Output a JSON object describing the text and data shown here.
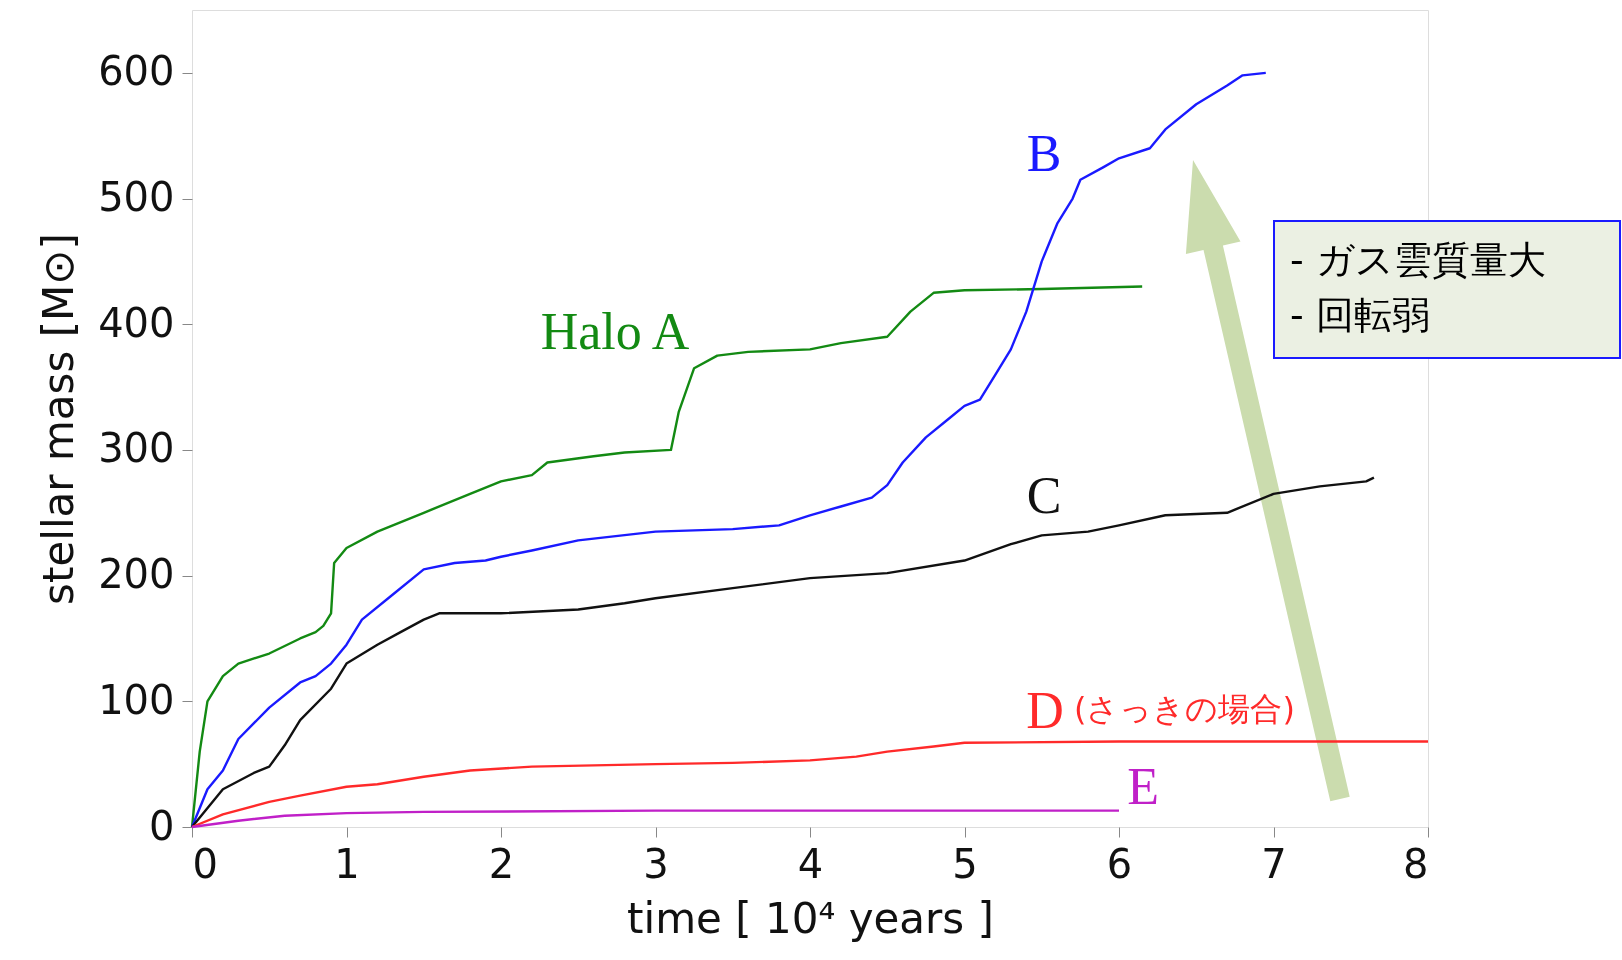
{
  "chart_data": {
    "type": "line",
    "xlabel": "time [ 10⁴ years ]",
    "ylabel": "stellar mass [M⊙]",
    "xlim": [
      0,
      8
    ],
    "ylim": [
      0,
      650
    ],
    "xticks": [
      0,
      1,
      2,
      3,
      4,
      5,
      6,
      7,
      8
    ],
    "yticks": [
      0,
      100,
      200,
      300,
      400,
      500,
      600
    ],
    "grid": false,
    "marker": "none",
    "line_style": "solid",
    "series": [
      {
        "name": "Halo A",
        "color": "#138a13",
        "x": [
          0,
          0.05,
          0.1,
          0.2,
          0.3,
          0.5,
          0.7,
          0.8,
          0.85,
          0.9,
          0.92,
          1.0,
          1.2,
          1.5,
          1.8,
          2.0,
          2.2,
          2.3,
          2.6,
          2.8,
          3.1,
          3.15,
          3.25,
          3.4,
          3.6,
          4.0,
          4.2,
          4.5,
          4.65,
          4.8,
          5.0,
          5.5,
          6.15
        ],
        "values": [
          0,
          60,
          100,
          120,
          130,
          138,
          150,
          155,
          160,
          170,
          210,
          222,
          235,
          250,
          265,
          275,
          280,
          290,
          295,
          298,
          300,
          330,
          365,
          375,
          378,
          380,
          385,
          390,
          410,
          425,
          427,
          428,
          430
        ]
      },
      {
        "name": "B",
        "color": "#1a1aff",
        "x": [
          0,
          0.1,
          0.2,
          0.3,
          0.5,
          0.7,
          0.8,
          0.9,
          1.0,
          1.1,
          1.3,
          1.5,
          1.7,
          1.9,
          2.0,
          2.2,
          2.5,
          3.0,
          3.5,
          3.8,
          4.0,
          4.2,
          4.4,
          4.5,
          4.6,
          4.75,
          4.9,
          5.0,
          5.1,
          5.2,
          5.3,
          5.4,
          5.5,
          5.6,
          5.7,
          5.75,
          5.9,
          6.0,
          6.2,
          6.3,
          6.5,
          6.7,
          6.8,
          6.95
        ],
        "values": [
          0,
          30,
          45,
          70,
          95,
          115,
          120,
          130,
          145,
          165,
          185,
          205,
          210,
          212,
          215,
          220,
          228,
          235,
          237,
          240,
          248,
          255,
          262,
          272,
          290,
          310,
          325,
          335,
          340,
          360,
          380,
          410,
          450,
          480,
          500,
          515,
          525,
          532,
          540,
          555,
          575,
          590,
          598,
          600
        ]
      },
      {
        "name": "C",
        "color": "#111111",
        "x": [
          0,
          0.2,
          0.4,
          0.5,
          0.6,
          0.7,
          0.9,
          1.0,
          1.2,
          1.35,
          1.5,
          1.6,
          2.0,
          2.5,
          2.8,
          3.0,
          3.5,
          4.0,
          4.5,
          5.0,
          5.3,
          5.5,
          5.8,
          6.0,
          6.3,
          6.7,
          7.0,
          7.3,
          7.6,
          7.65
        ],
        "values": [
          0,
          30,
          43,
          48,
          65,
          85,
          110,
          130,
          145,
          155,
          165,
          170,
          170,
          173,
          178,
          182,
          190,
          198,
          202,
          212,
          225,
          232,
          235,
          240,
          248,
          250,
          265,
          271,
          275,
          278
        ]
      },
      {
        "name": "D",
        "color": "#ff2a2a",
        "x": [
          0,
          0.2,
          0.5,
          0.7,
          1.0,
          1.2,
          1.5,
          1.8,
          2.2,
          3.0,
          3.5,
          4.0,
          4.3,
          4.5,
          4.8,
          5.0,
          6.0,
          8.0
        ],
        "values": [
          0,
          10,
          20,
          25,
          32,
          34,
          40,
          45,
          48,
          50,
          51,
          53,
          56,
          60,
          64,
          67,
          68,
          68
        ]
      },
      {
        "name": "E",
        "color": "#c020c8",
        "x": [
          0,
          0.3,
          0.6,
          1.0,
          1.5,
          3.0,
          6.0
        ],
        "values": [
          0,
          5,
          9,
          11,
          12,
          13,
          13
        ]
      }
    ],
    "annotations": [
      "(さっきの場合)",
      "- ガス雲質量大\n- 回転弱"
    ]
  }
}
